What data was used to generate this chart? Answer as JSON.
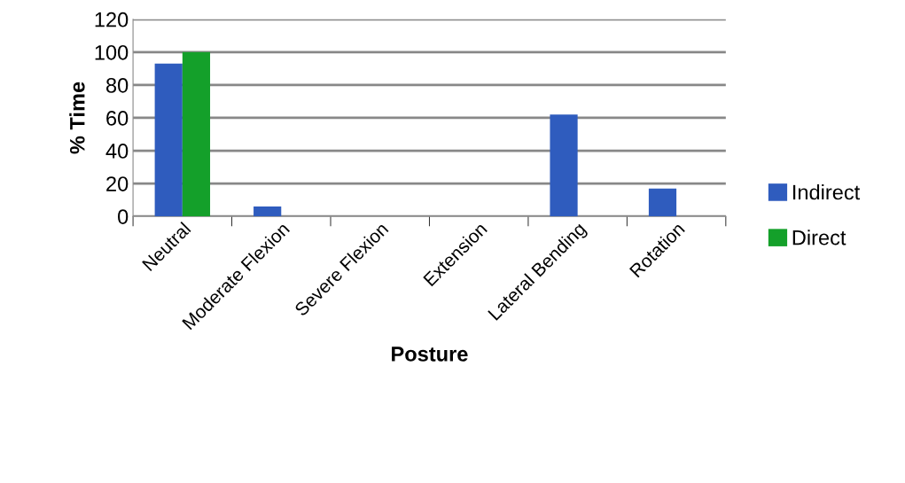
{
  "chart_data": {
    "type": "bar",
    "xlabel": "Posture",
    "ylabel": "% Time",
    "categories": [
      "Neutral",
      "Moderate Flexion",
      "Severe Flexion",
      "Extension",
      "Lateral Bending",
      "Rotation"
    ],
    "series": [
      {
        "name": "Indirect",
        "color": "#2f5cbe",
        "values": [
          93,
          6,
          0,
          0,
          62,
          17
        ]
      },
      {
        "name": "Direct",
        "color": "#14a02a",
        "values": [
          100,
          0,
          0,
          0,
          0,
          0
        ]
      }
    ],
    "ylim": [
      0,
      120
    ],
    "yticks": [
      0,
      20,
      40,
      60,
      80,
      100,
      120
    ],
    "grid": "y",
    "legend": "right"
  }
}
